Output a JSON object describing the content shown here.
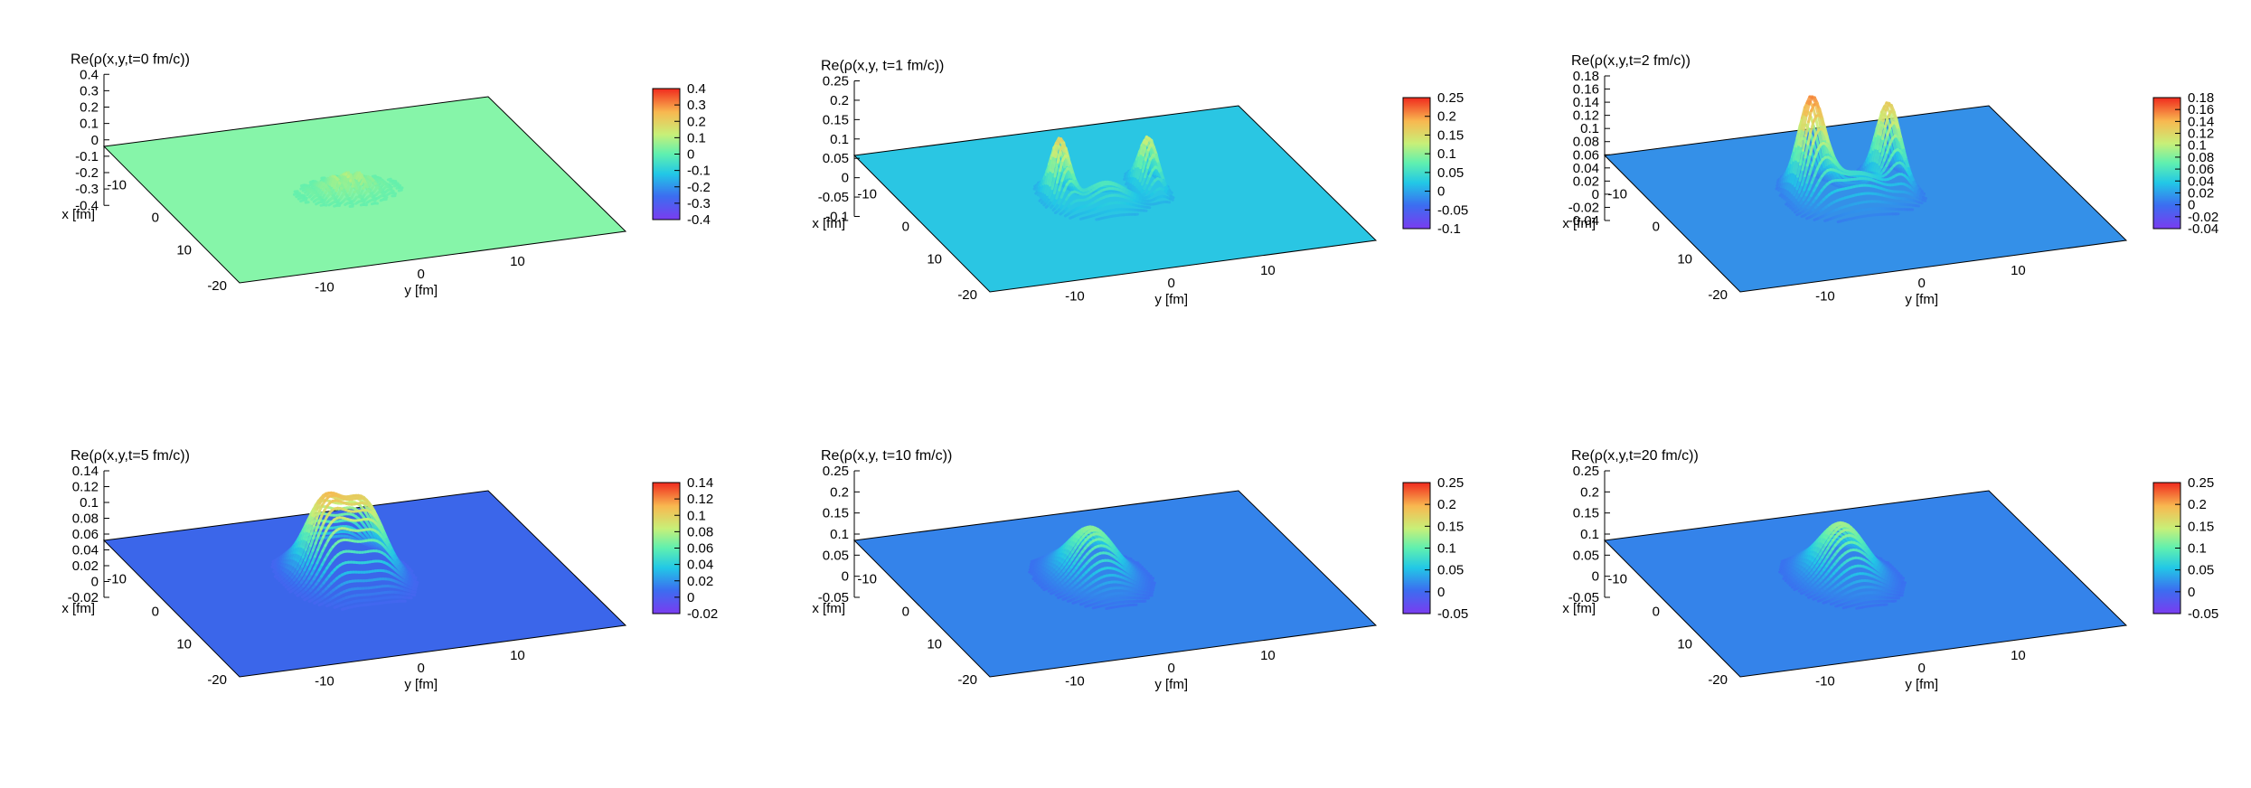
{
  "chart_data": [
    {
      "type": "surface",
      "title": "Re(ρ(x,y,t=0 fm/c))",
      "xlabel": "x [fm]",
      "ylabel": "y [fm]",
      "x_ticks": [
        "-10",
        "0",
        "10",
        "-20"
      ],
      "y_ticks": [
        "-10",
        "0",
        "10"
      ],
      "z_ticks": [
        "0.4",
        "0.3",
        "0.2",
        "0.1",
        "0",
        "-0.1",
        "-0.2",
        "-0.3",
        "-0.4"
      ],
      "colorbar_ticks": [
        "0.4",
        "0.3",
        "0.2",
        "0.1",
        "0",
        "-0.1",
        "-0.2",
        "-0.3",
        "-0.4"
      ],
      "zlim": [
        -0.4,
        0.4
      ],
      "plane_value": 0,
      "plane_color": "#86f5a9",
      "shape": "comb",
      "peaks": 8,
      "peak_max": 0.12
    },
    {
      "type": "surface",
      "title": "Re(ρ(x,y, t=1 fm/c))",
      "xlabel": "x [fm]",
      "ylabel": "y [fm]",
      "x_ticks": [
        "-10",
        "0",
        "10",
        "-20"
      ],
      "y_ticks": [
        "-10",
        "0",
        "10"
      ],
      "z_ticks": [
        "0.25",
        "0.2",
        "0.15",
        "0.1",
        "0.05",
        "0",
        "-0.05",
        "-0.1"
      ],
      "colorbar_ticks": [
        "0.25",
        "0.2",
        "0.15",
        "0.1",
        "0.05",
        "0",
        "-0.05",
        "-0.1"
      ],
      "zlim": [
        -0.1,
        0.25
      ],
      "plane_value": 0,
      "plane_color": "#2ac6e3",
      "shape": "two_peaks_ridge",
      "peak_max": 0.16
    },
    {
      "type": "surface",
      "title": "Re(ρ(x,y,t=2 fm/c))",
      "xlabel": "x [fm]",
      "ylabel": "y [fm]",
      "x_ticks": [
        "-10",
        "0",
        "10",
        "-20"
      ],
      "y_ticks": [
        "-10",
        "0",
        "10"
      ],
      "z_ticks": [
        "0.18",
        "0.16",
        "0.14",
        "0.12",
        "0.1",
        "0.08",
        "0.06",
        "0.04",
        "0.02",
        "0",
        "-0.02",
        "-0.04"
      ],
      "colorbar_ticks": [
        "0.18",
        "0.16",
        "0.14",
        "0.12",
        "0.1",
        "0.08",
        "0.06",
        "0.04",
        "0.02",
        "0",
        "-0.02",
        "-0.04"
      ],
      "zlim": [
        -0.04,
        0.18
      ],
      "plane_value": 0,
      "plane_color": "#3490e8",
      "shape": "bowl",
      "peak_max": 0.15
    },
    {
      "type": "surface",
      "title": "Re(ρ(x,y,t=5 fm/c))",
      "xlabel": "x [fm]",
      "ylabel": "y [fm]",
      "x_ticks": [
        "-10",
        "0",
        "10",
        "-20"
      ],
      "y_ticks": [
        "-10",
        "0",
        "10"
      ],
      "z_ticks": [
        "0.14",
        "0.12",
        "0.1",
        "0.08",
        "0.06",
        "0.04",
        "0.02",
        "0",
        "-0.02"
      ],
      "colorbar_ticks": [
        "0.14",
        "0.12",
        "0.1",
        "0.08",
        "0.06",
        "0.04",
        "0.02",
        "0",
        "-0.02"
      ],
      "zlim": [
        -0.02,
        0.14
      ],
      "plane_value": 0,
      "plane_color": "#3b66ea",
      "shape": "double_hump",
      "peak_max": 0.1
    },
    {
      "type": "surface",
      "title": "Re(ρ(x,y, t=10 fm/c))",
      "xlabel": "x [fm]",
      "ylabel": "y [fm]",
      "x_ticks": [
        "-10",
        "0",
        "10",
        "-20"
      ],
      "y_ticks": [
        "-10",
        "0",
        "10"
      ],
      "z_ticks": [
        "0.25",
        "0.2",
        "0.15",
        "0.1",
        "0.05",
        "0",
        "-0.05"
      ],
      "colorbar_ticks": [
        "0.25",
        "0.2",
        "0.15",
        "0.1",
        "0.05",
        "0",
        "-0.05"
      ],
      "zlim": [
        -0.05,
        0.25
      ],
      "plane_value": 0,
      "plane_color": "#3483ea",
      "shape": "single",
      "peak_max": 0.12
    },
    {
      "type": "surface",
      "title": "Re(ρ(x,y,t=20 fm/c))",
      "xlabel": "x [fm]",
      "ylabel": "y [fm]",
      "x_ticks": [
        "-10",
        "0",
        "10",
        "-20"
      ],
      "y_ticks": [
        "-10",
        "0",
        "10"
      ],
      "z_ticks": [
        "0.25",
        "0.2",
        "0.15",
        "0.1",
        "0.05",
        "0",
        "-0.05"
      ],
      "colorbar_ticks": [
        "0.25",
        "0.2",
        "0.15",
        "0.1",
        "0.05",
        "0",
        "-0.05"
      ],
      "zlim": [
        -0.05,
        0.25
      ],
      "plane_value": 0,
      "plane_color": "#3483ea",
      "shape": "single",
      "peak_max": 0.13
    }
  ]
}
